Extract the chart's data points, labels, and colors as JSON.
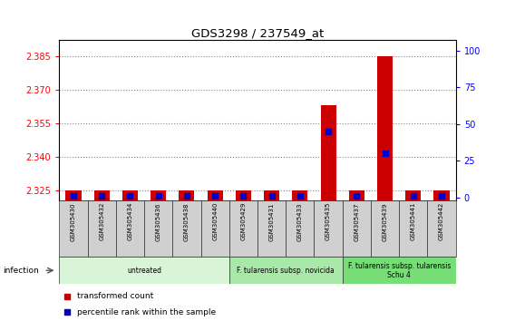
{
  "title": "GDS3298 / 237549_at",
  "samples": [
    "GSM305430",
    "GSM305432",
    "GSM305434",
    "GSM305436",
    "GSM305438",
    "GSM305440",
    "GSM305429",
    "GSM305431",
    "GSM305433",
    "GSM305435",
    "GSM305437",
    "GSM305439",
    "GSM305441",
    "GSM305442"
  ],
  "transformed_count": [
    2.325,
    2.325,
    2.325,
    2.325,
    2.325,
    2.325,
    2.325,
    2.325,
    2.325,
    2.363,
    2.325,
    2.385,
    2.325,
    2.325
  ],
  "percentile_rank": [
    1.0,
    1.0,
    1.0,
    1.0,
    1.0,
    1.0,
    1.0,
    1.0,
    1.0,
    45.0,
    1.0,
    30.0,
    1.0,
    1.0
  ],
  "ylim_left": [
    2.3205,
    2.392
  ],
  "ylim_right": [
    -2,
    107
  ],
  "yticks_left": [
    2.325,
    2.34,
    2.355,
    2.37,
    2.385
  ],
  "yticks_right": [
    0,
    25,
    50,
    75,
    100
  ],
  "groups": [
    {
      "label": "untreated",
      "start": 0,
      "end": 5,
      "color": "#d8f5d8"
    },
    {
      "label": "F. tularensis subsp. novicida",
      "start": 6,
      "end": 9,
      "color": "#aae8aa"
    },
    {
      "label": "F. tularensis subsp. tularensis\nSchu 4",
      "start": 10,
      "end": 13,
      "color": "#77dd77"
    }
  ],
  "bar_color": "#cc0000",
  "dot_color": "#0000cc",
  "bar_width": 0.55,
  "dot_size": 18,
  "grid_color": "#888888",
  "plot_bg_color": "#ffffff",
  "sample_box_color": "#d0d0d0",
  "infection_label": "infection",
  "legend_items": [
    {
      "label": "transformed count",
      "color": "#cc0000"
    },
    {
      "label": "percentile rank within the sample",
      "color": "#0000cc"
    }
  ]
}
